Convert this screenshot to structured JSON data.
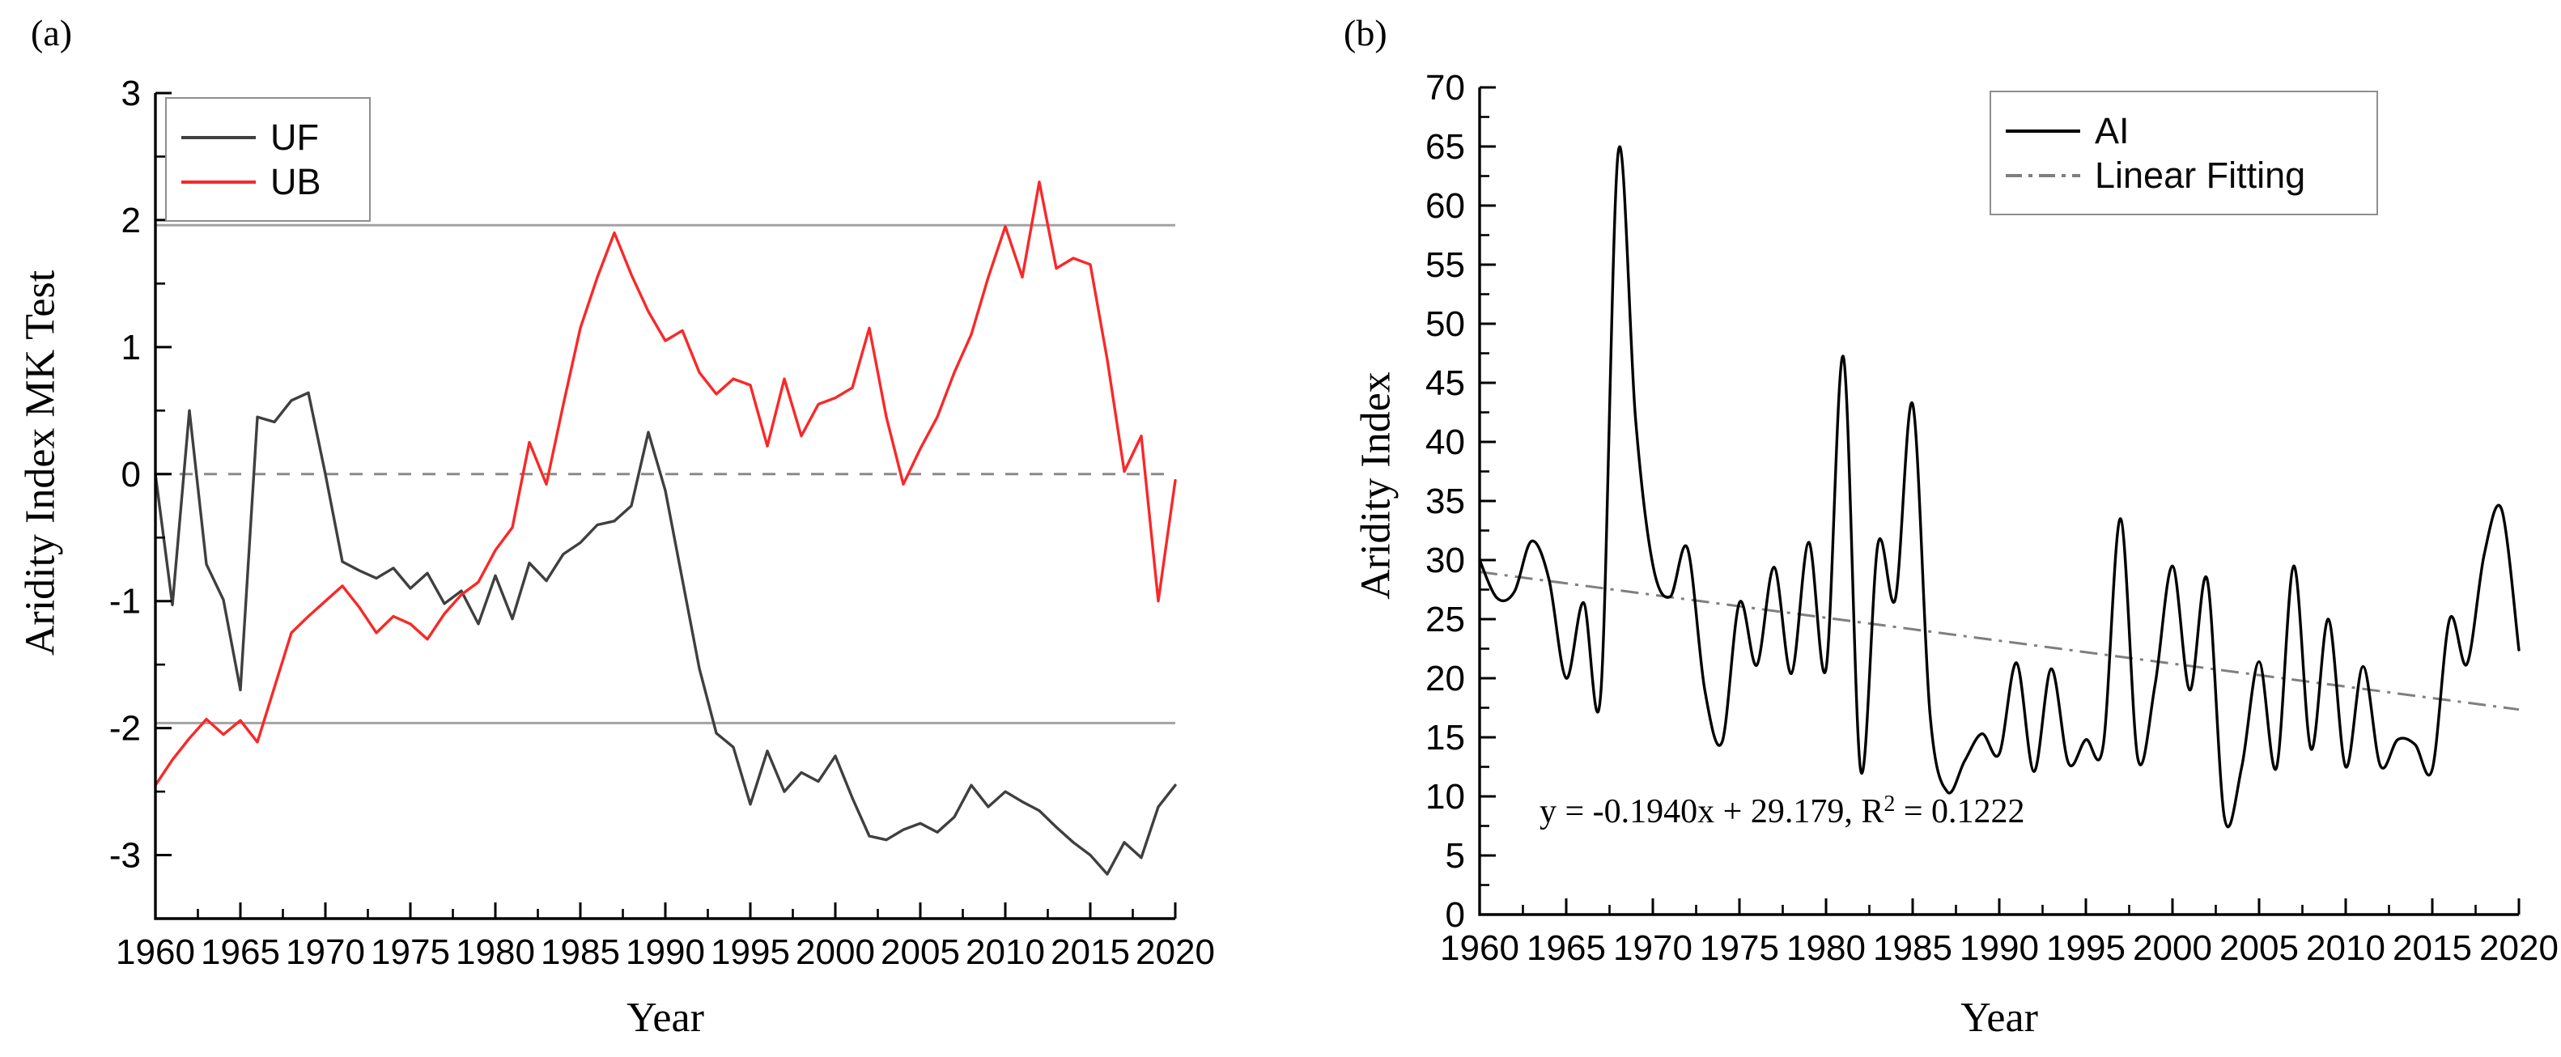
{
  "figure": {
    "panel_a_label": "(a)",
    "panel_b_label": "(b)"
  },
  "chart_data": [
    {
      "type": "line",
      "panel": "a",
      "xlabel": "Year",
      "ylabel": "Aridity Index MK Test",
      "xlim": [
        1960,
        2020
      ],
      "ylim": [
        -3.5,
        3
      ],
      "grid": false,
      "legend_position": "top-left",
      "x_ticks": [
        1960,
        1965,
        1970,
        1975,
        1980,
        1985,
        1990,
        1995,
        2000,
        2005,
        2010,
        2015,
        2020
      ],
      "y_ticks": [
        3,
        2,
        1,
        0,
        -1,
        -2,
        -3
      ],
      "x_minor_step": 2.5,
      "y_minor_step": 0.5,
      "reference_lines": [
        {
          "y": 1.96,
          "style": "solid",
          "color": "#a3a3a3"
        },
        {
          "y": 0,
          "style": "dashed",
          "color": "#8a8a8a"
        },
        {
          "y": -1.96,
          "style": "solid",
          "color": "#a3a3a3"
        }
      ],
      "years": [
        1960,
        1961,
        1962,
        1963,
        1964,
        1965,
        1966,
        1967,
        1968,
        1969,
        1970,
        1971,
        1972,
        1973,
        1974,
        1975,
        1976,
        1977,
        1978,
        1979,
        1980,
        1981,
        1982,
        1983,
        1984,
        1985,
        1986,
        1987,
        1988,
        1989,
        1990,
        1991,
        1992,
        1993,
        1994,
        1995,
        1996,
        1997,
        1998,
        1999,
        2000,
        2001,
        2002,
        2003,
        2004,
        2005,
        2006,
        2007,
        2008,
        2009,
        2010,
        2011,
        2012,
        2013,
        2014,
        2015,
        2016,
        2017,
        2018,
        2019,
        2020
      ],
      "series": [
        {
          "name": "UF",
          "color": "#3f3f3f",
          "values": [
            0.0,
            -1.03,
            0.5,
            -0.71,
            -0.99,
            -1.7,
            0.45,
            0.41,
            0.58,
            0.64,
            0.0,
            -0.69,
            -0.76,
            -0.82,
            -0.74,
            -0.9,
            -0.78,
            -1.02,
            -0.92,
            -1.18,
            -0.8,
            -1.14,
            -0.7,
            -0.84,
            -0.63,
            -0.54,
            -0.4,
            -0.37,
            -0.25,
            0.33,
            -0.13,
            -0.83,
            -1.53,
            -2.04,
            -2.15,
            -2.6,
            -2.18,
            -2.5,
            -2.35,
            -2.42,
            -2.22,
            -2.55,
            -2.85,
            -2.88,
            -2.8,
            -2.75,
            -2.82,
            -2.7,
            -2.45,
            -2.62,
            -2.5,
            -2.58,
            -2.65,
            -2.78,
            -2.9,
            -3.0,
            -3.15,
            -2.9,
            -3.02,
            -2.62,
            -2.45
          ]
        },
        {
          "name": "UB",
          "color": "#fa2828",
          "values": [
            -2.45,
            -2.25,
            -2.08,
            -1.93,
            -2.05,
            -1.94,
            -2.11,
            -1.68,
            -1.25,
            -1.12,
            -1.0,
            -0.88,
            -1.05,
            -1.25,
            -1.12,
            -1.18,
            -1.3,
            -1.1,
            -0.95,
            -0.85,
            -0.6,
            -0.42,
            0.25,
            -0.08,
            0.55,
            1.15,
            1.55,
            1.9,
            1.57,
            1.28,
            1.05,
            1.13,
            0.8,
            0.63,
            0.75,
            0.7,
            0.22,
            0.75,
            0.3,
            0.55,
            0.6,
            0.68,
            1.15,
            0.45,
            -0.08,
            0.2,
            0.45,
            0.8,
            1.1,
            1.55,
            1.95,
            1.55,
            2.3,
            1.62,
            1.7,
            1.65,
            0.9,
            0.02,
            0.3,
            -1.0,
            -0.05
          ]
        }
      ]
    },
    {
      "type": "line",
      "panel": "b",
      "xlabel": "Year",
      "ylabel": "Aridity Index",
      "xlim": [
        1960,
        2020
      ],
      "ylim": [
        0,
        70
      ],
      "grid": false,
      "legend_position": "top-right",
      "x_ticks": [
        1960,
        1965,
        1970,
        1975,
        1980,
        1985,
        1990,
        1995,
        2000,
        2005,
        2010,
        2015,
        2020
      ],
      "y_ticks": [
        70,
        65,
        60,
        55,
        50,
        45,
        40,
        35,
        30,
        25,
        20,
        15,
        10,
        5,
        0
      ],
      "x_minor_step": 2.5,
      "y_minor_step": 2.5,
      "years": [
        1960,
        1961,
        1962,
        1963,
        1964,
        1965,
        1966,
        1967,
        1968,
        1969,
        1970,
        1971,
        1972,
        1973,
        1974,
        1975,
        1976,
        1977,
        1978,
        1979,
        1980,
        1981,
        1982,
        1983,
        1984,
        1985,
        1986,
        1987,
        1988,
        1989,
        1990,
        1991,
        1992,
        1993,
        1994,
        1995,
        1996,
        1997,
        1998,
        1999,
        2000,
        2001,
        2002,
        2003,
        2004,
        2005,
        2006,
        2007,
        2008,
        2009,
        2010,
        2011,
        2012,
        2013,
        2014,
        2015,
        2016,
        2017,
        2018,
        2019,
        2020
      ],
      "series": [
        {
          "name": "AI",
          "color": "#000000",
          "smooth": true,
          "values": [
            30.0,
            26.8,
            27.3,
            31.6,
            28.4,
            20.0,
            26.4,
            18.8,
            64.5,
            42.0,
            29.6,
            26.9,
            31.0,
            19.0,
            14.6,
            26.4,
            21.1,
            29.4,
            20.4,
            31.5,
            20.8,
            47.2,
            12.2,
            31.4,
            26.7,
            43.2,
            17.0,
            10.4,
            13.0,
            15.3,
            13.6,
            21.3,
            12.1,
            20.8,
            12.8,
            14.8,
            14.3,
            33.5,
            13.2,
            19.5,
            29.5,
            19.0,
            28.4,
            8.2,
            12.5,
            21.4,
            12.4,
            29.5,
            14.0,
            25.0,
            12.5,
            21.0,
            12.6,
            14.8,
            14.4,
            12.3,
            25.0,
            21.2,
            30.5,
            34.3,
            22.4
          ]
        }
      ],
      "trend": {
        "name": "Linear Fitting",
        "color": "#7f7f7f",
        "style": "dash-dot",
        "x": [
          1960,
          2020
        ],
        "y": [
          29.0,
          17.35
        ]
      },
      "equation": {
        "part1": "y = -0.1940x + 29.179, R",
        "sup": "2",
        "part2": " = 0.1222"
      }
    }
  ]
}
